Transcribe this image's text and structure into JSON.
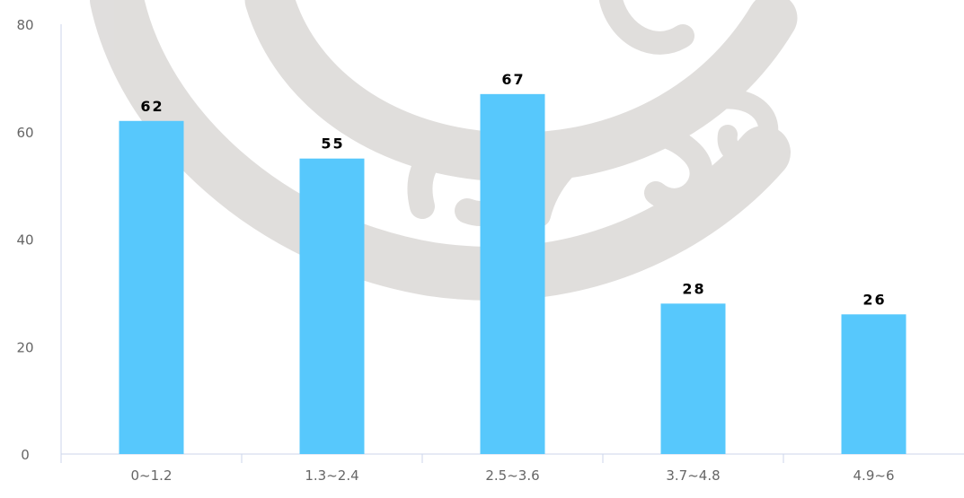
{
  "colors": {
    "bar": "#57c8fc",
    "axis": "#ccd6eb",
    "tick_text": "#666666",
    "data_label": "#000000",
    "watermark": "#d6d3d1"
  },
  "chart_data": {
    "type": "bar",
    "title": "",
    "xlabel": "",
    "ylabel": "",
    "categories": [
      "0~1.2",
      "1.3~2.4",
      "2.5~3.6",
      "3.7~4.8",
      "4.9~6"
    ],
    "values": [
      62,
      55,
      67,
      28,
      26
    ],
    "ylim": [
      0,
      80
    ],
    "yticks": [
      0,
      20,
      40,
      60,
      80
    ],
    "grid": false,
    "data_labels": true,
    "legend": "none"
  }
}
